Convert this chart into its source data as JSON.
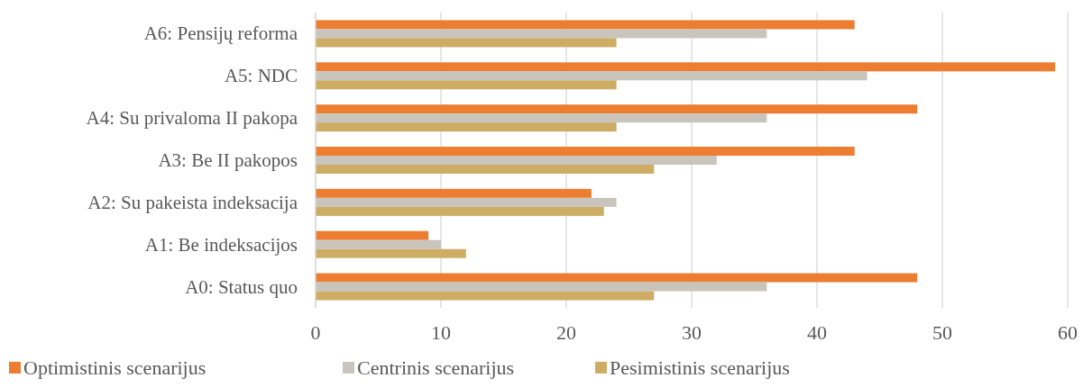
{
  "chart_data": {
    "type": "bar",
    "orientation": "horizontal",
    "categories": [
      "A6:  Pensijų reforma",
      "A5:  NDC",
      "A4:  Su privaloma II pakopa",
      "A3:  Be II pakopos",
      "A2:  Su pakeista indeksacija",
      "A1:  Be indeksacijos",
      "A0: Status quo"
    ],
    "series": [
      {
        "name": "Optimistinis scenarijus",
        "color": "#ed7d31",
        "values": [
          43,
          59,
          48,
          43,
          22,
          9,
          48
        ]
      },
      {
        "name": "Centrinis scenarijus",
        "color": "#c9c5bd",
        "values": [
          36,
          44,
          36,
          32,
          24,
          10,
          36
        ]
      },
      {
        "name": "Pesimistinis scenarijus",
        "color": "#cdad64",
        "values": [
          24,
          24,
          24,
          27,
          23,
          12,
          27
        ]
      }
    ],
    "xlim": [
      0,
      60
    ],
    "xticks": [
      0,
      10,
      20,
      30,
      40,
      50,
      60
    ],
    "grid": "x",
    "legend": "bottom"
  }
}
